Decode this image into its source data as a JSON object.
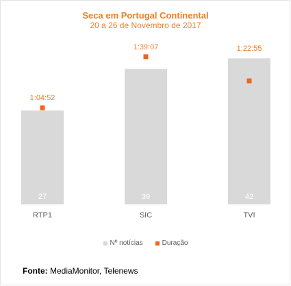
{
  "chart_data": {
    "type": "bar",
    "title": "Seca em Portugal Continental",
    "subtitle": "20 a 26 de Novembro de 2017",
    "categories": [
      "RTP1",
      "SIC",
      "TVI"
    ],
    "series": [
      {
        "name": "Nº notícias",
        "values": [
          27,
          39,
          42
        ],
        "color": "#d9d9d9"
      },
      {
        "name": "Duração",
        "values": [
          "1:04:52",
          "1:39:07",
          "1:22:55"
        ],
        "values_seconds": [
          3892,
          5947,
          4975
        ],
        "color": "#f0641e"
      }
    ],
    "ylim_news": [
      0,
      45
    ],
    "ylim_duration_seconds": [
      0,
      6300
    ],
    "grid": false,
    "legend": "bottom"
  },
  "footer": {
    "label": "Fonte:",
    "text": " MediaMonitor, Telenews"
  },
  "colors": {
    "accent": "#f07d23",
    "bar": "#d9d9d9",
    "marker": "#f0641e"
  }
}
